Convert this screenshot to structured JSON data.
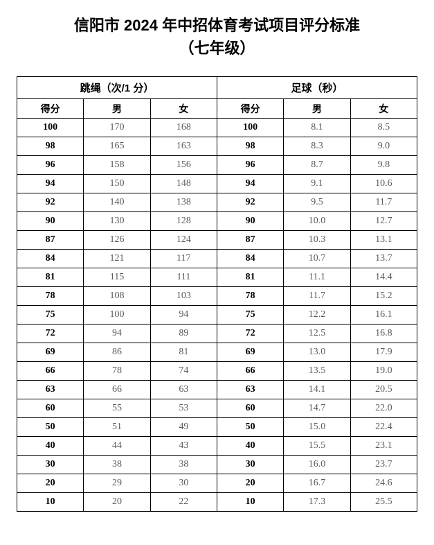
{
  "title_line1": "信阳市 2024 年中招体育考试项目评分标准",
  "title_line2": "（七年级）",
  "group_headers": {
    "jump_rope": "跳绳（次/1 分）",
    "football": "足球（秒）"
  },
  "sub_headers": {
    "score": "得分",
    "male": "男",
    "female": "女"
  },
  "table": {
    "type": "table",
    "background_color": "#ffffff",
    "border_color": "#000000",
    "text_color": "#5a5a5a",
    "bold_color": "#000000",
    "font_size_cell": 14,
    "font_size_header": 15,
    "rows": [
      {
        "score": "100",
        "jr_m": "170",
        "jr_f": "168",
        "fb_m": "8.1",
        "fb_f": "8.5"
      },
      {
        "score": "98",
        "jr_m": "165",
        "jr_f": "163",
        "fb_m": "8.3",
        "fb_f": "9.0"
      },
      {
        "score": "96",
        "jr_m": "158",
        "jr_f": "156",
        "fb_m": "8.7",
        "fb_f": "9.8"
      },
      {
        "score": "94",
        "jr_m": "150",
        "jr_f": "148",
        "fb_m": "9.1",
        "fb_f": "10.6"
      },
      {
        "score": "92",
        "jr_m": "140",
        "jr_f": "138",
        "fb_m": "9.5",
        "fb_f": "11.7"
      },
      {
        "score": "90",
        "jr_m": "130",
        "jr_f": "128",
        "fb_m": "10.0",
        "fb_f": "12.7"
      },
      {
        "score": "87",
        "jr_m": "126",
        "jr_f": "124",
        "fb_m": "10.3",
        "fb_f": "13.1"
      },
      {
        "score": "84",
        "jr_m": "121",
        "jr_f": "117",
        "fb_m": "10.7",
        "fb_f": "13.7"
      },
      {
        "score": "81",
        "jr_m": "115",
        "jr_f": "111",
        "fb_m": "11.1",
        "fb_f": "14.4"
      },
      {
        "score": "78",
        "jr_m": "108",
        "jr_f": "103",
        "fb_m": "11.7",
        "fb_f": "15.2"
      },
      {
        "score": "75",
        "jr_m": "100",
        "jr_f": "94",
        "fb_m": "12.2",
        "fb_f": "16.1"
      },
      {
        "score": "72",
        "jr_m": "94",
        "jr_f": "89",
        "fb_m": "12.5",
        "fb_f": "16.8"
      },
      {
        "score": "69",
        "jr_m": "86",
        "jr_f": "81",
        "fb_m": "13.0",
        "fb_f": "17.9"
      },
      {
        "score": "66",
        "jr_m": "78",
        "jr_f": "74",
        "fb_m": "13.5",
        "fb_f": "19.0"
      },
      {
        "score": "63",
        "jr_m": "66",
        "jr_f": "63",
        "fb_m": "14.1",
        "fb_f": "20.5"
      },
      {
        "score": "60",
        "jr_m": "55",
        "jr_f": "53",
        "fb_m": "14.7",
        "fb_f": "22.0"
      },
      {
        "score": "50",
        "jr_m": "51",
        "jr_f": "49",
        "fb_m": "15.0",
        "fb_f": "22.4"
      },
      {
        "score": "40",
        "jr_m": "44",
        "jr_f": "43",
        "fb_m": "15.5",
        "fb_f": "23.1"
      },
      {
        "score": "30",
        "jr_m": "38",
        "jr_f": "38",
        "fb_m": "16.0",
        "fb_f": "23.7"
      },
      {
        "score": "20",
        "jr_m": "29",
        "jr_f": "30",
        "fb_m": "16.7",
        "fb_f": "24.6"
      },
      {
        "score": "10",
        "jr_m": "20",
        "jr_f": "22",
        "fb_m": "17.3",
        "fb_f": "25.5"
      }
    ]
  }
}
